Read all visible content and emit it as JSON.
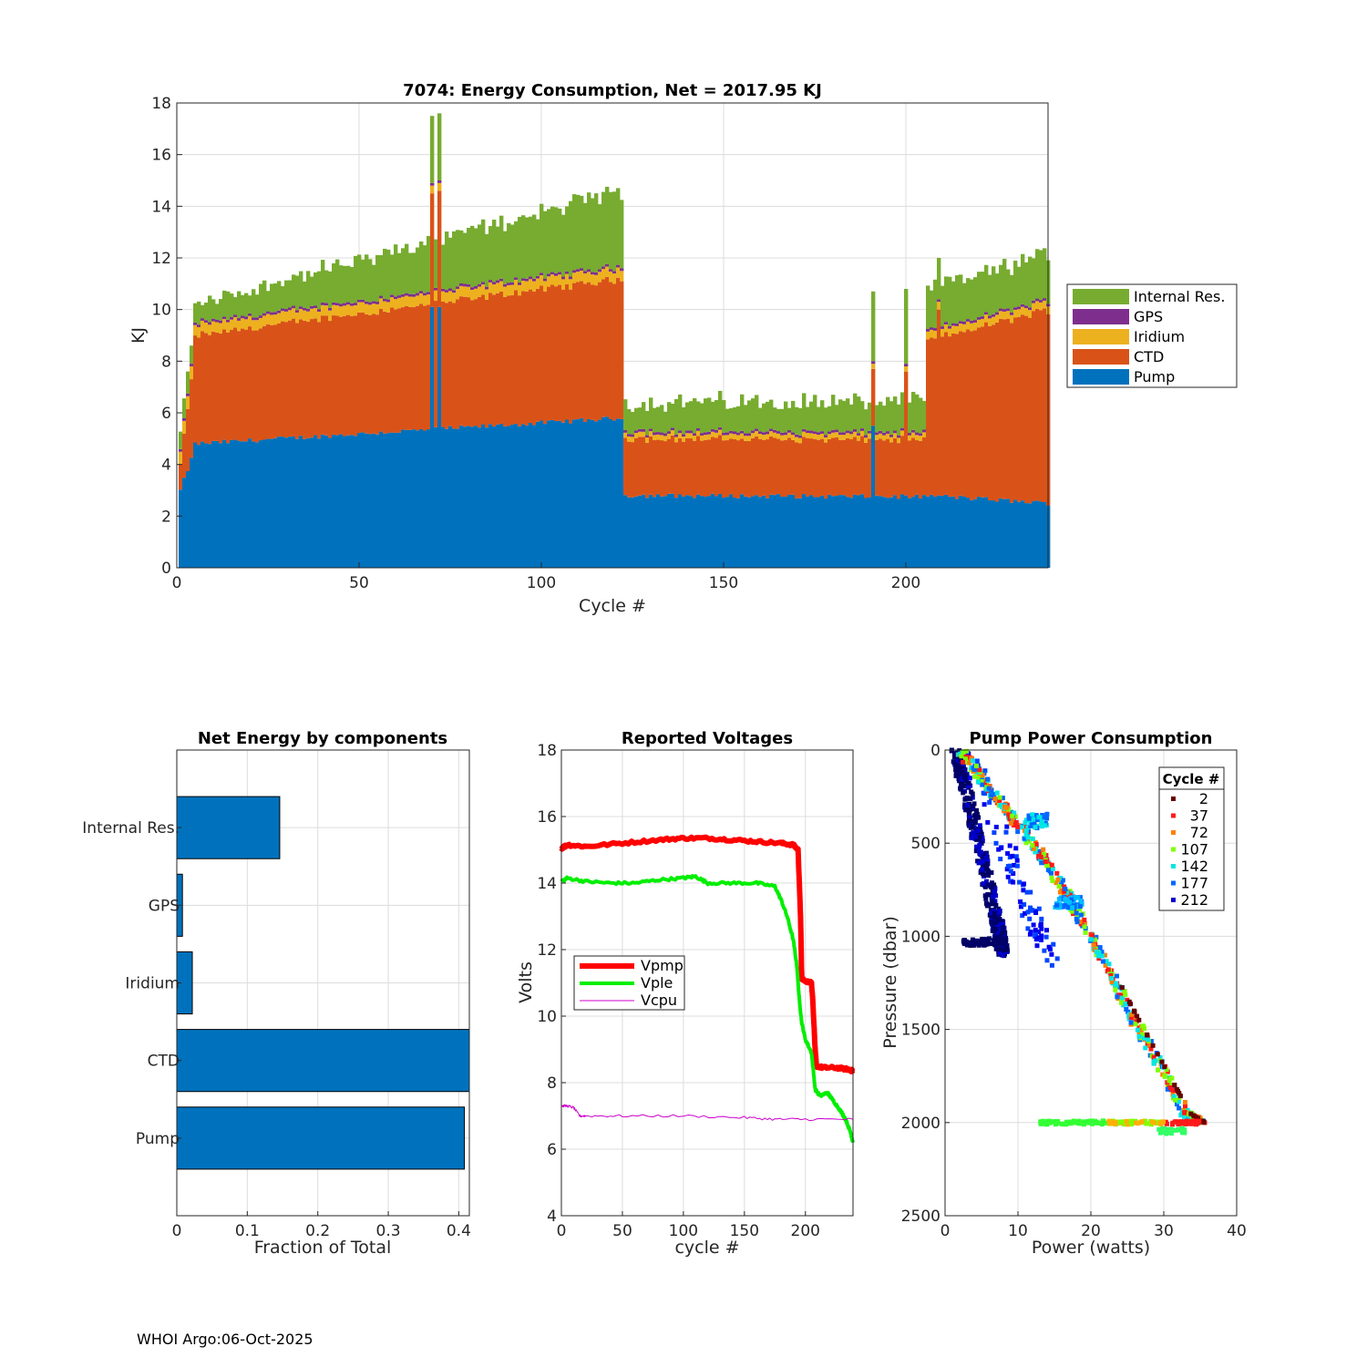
{
  "footer": "WHOI Argo:06-Oct-2025",
  "chart_data": [
    {
      "id": "energy",
      "type": "bar",
      "stacked": true,
      "title": "7074: Energy Consumption,  Net = 2017.95 KJ",
      "xlabel": "Cycle #",
      "ylabel": "KJ",
      "xlim": [
        0,
        239
      ],
      "ylim": [
        0,
        18
      ],
      "xticks": [
        0,
        50,
        100,
        150,
        200
      ],
      "yticks": [
        0,
        2,
        4,
        6,
        8,
        10,
        12,
        14,
        16,
        18
      ],
      "grid": true,
      "legend_position": "right",
      "series": [
        {
          "name": "Pump",
          "color": "#0072BD"
        },
        {
          "name": "CTD",
          "color": "#D95319"
        },
        {
          "name": "Iridium",
          "color": "#EDB120"
        },
        {
          "name": "GPS",
          "color": "#7E2F8E"
        },
        {
          "name": "Internal Res.",
          "color": "#77AC30"
        }
      ],
      "legend_order": [
        "Internal Res.",
        "GPS",
        "Iridium",
        "CTD",
        "Pump"
      ],
      "segments": [
        {
          "range": [
            1,
            4
          ],
          "Pump": [
            3.0,
            4.2
          ],
          "CTD": [
            1.0,
            3.0
          ],
          "Iridium": 0.5,
          "GPS": 0.1,
          "Internal Res.": [
            0.6,
            0.8
          ]
        },
        {
          "range": [
            5,
            122
          ],
          "Pump": [
            4.8,
            5.8
          ],
          "CTD": [
            4.2,
            5.4
          ],
          "Iridium": 0.4,
          "GPS": 0.1,
          "Internal Res.": [
            0.7,
            2.9
          ]
        },
        {
          "range": [
            123,
            205
          ],
          "Pump": [
            2.8,
            2.75
          ],
          "CTD": [
            2.2,
            2.2
          ],
          "Iridium": 0.2,
          "GPS": 0.1,
          "Internal Res.": [
            1.1,
            1.2
          ]
        },
        {
          "range": [
            206,
            239
          ],
          "Pump": [
            2.8,
            2.5
          ],
          "CTD": [
            6.0,
            7.5
          ],
          "Iridium": 0.3,
          "GPS": 0.1,
          "Internal Res.": [
            1.6,
            1.7
          ]
        }
      ],
      "spikes": [
        {
          "cycle": 70,
          "Pump": 10.1,
          "CTD": 4.4,
          "Iridium": 0.3,
          "GPS": 0.1,
          "Internal Res.": 2.6
        },
        {
          "cycle": 72,
          "Pump": 10.1,
          "CTD": 4.5,
          "Iridium": 0.3,
          "GPS": 0.1,
          "Internal Res.": 2.6
        },
        {
          "cycle": 191,
          "Pump": 5.5,
          "CTD": 2.2,
          "Iridium": 0.2,
          "GPS": 0.1,
          "Internal Res.": 2.7
        },
        {
          "cycle": 200,
          "Pump": 2.8,
          "CTD": 4.8,
          "Iridium": 0.2,
          "GPS": 0.1,
          "Internal Res.": 2.9
        },
        {
          "cycle": 209,
          "Pump": 2.8,
          "CTD": 7.2,
          "Iridium": 0.3,
          "GPS": 0.1,
          "Internal Res.": 1.6
        }
      ]
    },
    {
      "id": "components",
      "type": "bar",
      "orientation": "horizontal",
      "title": "Net Energy by components",
      "xlabel": "Fraction of Total",
      "categories": [
        "Pump",
        "CTD",
        "Iridium",
        "GPS",
        "Internal Res."
      ],
      "values": [
        0.408,
        0.415,
        0.022,
        0.008,
        0.146
      ],
      "xlim": [
        0,
        0.415
      ],
      "xticks": [
        0,
        0.1,
        0.2,
        0.3,
        0.4
      ],
      "xticklabels": [
        "0",
        "0.1",
        "0.2",
        "0.3",
        "0.4"
      ],
      "color": "#0072BD",
      "grid": true
    },
    {
      "id": "voltages",
      "type": "line",
      "title": "Reported Voltages",
      "xlabel": "cycle #",
      "ylabel": "Volts",
      "xlim": [
        0,
        239
      ],
      "ylim": [
        4,
        18
      ],
      "xticks": [
        0,
        50,
        100,
        150,
        200
      ],
      "yticks": [
        4,
        6,
        8,
        10,
        12,
        14,
        16,
        18
      ],
      "grid": true,
      "legend_position": "middle-left",
      "series": [
        {
          "name": "Vpmp",
          "color": "#FF0000",
          "width": 6,
          "x": [
            0,
            5,
            20,
            50,
            80,
            100,
            120,
            140,
            160,
            180,
            190,
            194,
            196,
            197,
            205,
            206,
            208,
            209,
            215,
            225,
            235,
            239
          ],
          "y": [
            15.05,
            15.15,
            15.1,
            15.2,
            15.3,
            15.35,
            15.35,
            15.3,
            15.25,
            15.2,
            15.15,
            15.0,
            13.0,
            11.1,
            11.0,
            10.5,
            9.0,
            8.5,
            8.45,
            8.45,
            8.4,
            8.35
          ]
        },
        {
          "name": "Vple",
          "color": "#00EE00",
          "width": 4,
          "x": [
            0,
            5,
            20,
            40,
            60,
            80,
            100,
            110,
            120,
            140,
            160,
            175,
            180,
            185,
            190,
            193,
            195,
            197,
            200,
            205,
            208,
            212,
            218,
            222,
            228,
            233,
            237,
            239
          ],
          "y": [
            14.05,
            14.15,
            14.05,
            14.0,
            14.0,
            14.1,
            14.15,
            14.2,
            14.0,
            14.0,
            14.0,
            13.9,
            13.5,
            13.0,
            12.3,
            11.5,
            10.5,
            9.8,
            9.3,
            8.9,
            7.8,
            7.6,
            7.7,
            7.5,
            7.2,
            6.9,
            6.5,
            6.2
          ]
        },
        {
          "name": "Vcpu",
          "color": "#CC00CC",
          "width": 1,
          "x": [
            0,
            5,
            10,
            15,
            20,
            50,
            100,
            150,
            175,
            200,
            239
          ],
          "y": [
            7.3,
            7.3,
            7.25,
            7.0,
            7.0,
            7.0,
            7.0,
            6.95,
            6.9,
            6.9,
            6.9
          ]
        }
      ]
    },
    {
      "id": "pump_power",
      "type": "scatter",
      "title": "Pump Power Consumption",
      "xlabel": "Power (watts)",
      "ylabel": "Pressure (dbar)",
      "xlim": [
        0,
        40
      ],
      "ylim": [
        0,
        2500
      ],
      "y_reversed": true,
      "xticks": [
        0,
        10,
        20,
        30,
        40
      ],
      "yticks": [
        0,
        500,
        1000,
        1500,
        2000,
        2500
      ],
      "grid": true,
      "legend_title": "Cycle #",
      "legend_position": "top-right",
      "series": [
        {
          "name": "2",
          "color": "#660000"
        },
        {
          "name": "37",
          "color": "#FF1A1A"
        },
        {
          "name": "72",
          "color": "#FF8000"
        },
        {
          "name": "107",
          "color": "#80FF00"
        },
        {
          "name": "142",
          "color": "#00E5E5"
        },
        {
          "name": "177",
          "color": "#0066FF"
        },
        {
          "name": "212",
          "color": "#0000CC"
        }
      ],
      "profiles": [
        {
          "group": "main",
          "path_x": [
            2,
            8,
            14,
            20,
            26,
            33,
            35
          ],
          "path_y": [
            0,
            300,
            600,
            1000,
            1450,
            1950,
            2000
          ]
        },
        {
          "group": "bottom",
          "path_x": [
            13,
            35
          ],
          "path_y": [
            2000,
            2000
          ]
        },
        {
          "group": "late",
          "path_x": [
            1.5,
            4,
            7,
            8
          ],
          "path_y": [
            0,
            400,
            900,
            1100
          ]
        },
        {
          "group": "late-scatter",
          "path_x": [
            3,
            8,
            12,
            15
          ],
          "path_y": [
            0,
            500,
            900,
            1150
          ]
        }
      ]
    }
  ]
}
